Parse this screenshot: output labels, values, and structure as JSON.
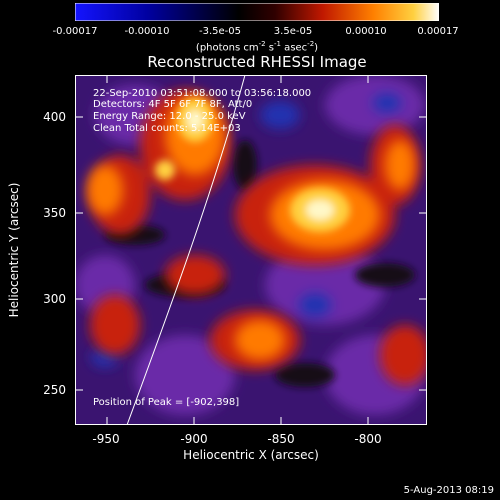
{
  "colorbar": {
    "ticks": [
      "-0.00017",
      "-0.00010",
      "-3.5e-05",
      "3.5e-05",
      "0.00010",
      "0.00017"
    ],
    "units_main": "(photons cm",
    "units_sup1": "-2",
    "units_mid": " s",
    "units_sup2": "-1",
    "units_mid2": " asec",
    "units_sup3": "-2",
    "units_end": ")",
    "colors": [
      "#1010ff",
      "#0000c0",
      "#000000",
      "#c02000",
      "#ff8000",
      "#ffffc0"
    ]
  },
  "title": "Reconstructed RHESSI Image",
  "info": {
    "time": "22-Sep-2010 03:51:08.000 to 03:56:18.000",
    "detectors": "Detectors: 4F 5F 6F 7F 8F, Att/0",
    "energy": "Energy Range: 12.0 - 25.0 keV",
    "method": "Clean     Total counts: 5.14E+03",
    "peak": "Position of Peak = [-902,398]"
  },
  "axes": {
    "xlabel": "Heliocentric X (arcsec)",
    "ylabel": "Heliocentric Y (arcsec)",
    "xticks": [
      "-950",
      "-900",
      "-850",
      "-800"
    ],
    "yticks": [
      "400",
      "350",
      "300",
      "250"
    ]
  },
  "stamp": "5-Aug-2013 08:19",
  "image_colors": {
    "bg": "#3a1470",
    "violet": "#6a2aa8",
    "dark": "#1a0a20",
    "blue": "#2030b0",
    "red": "#d02010",
    "orange": "#ff7a00",
    "yellow": "#ffd040",
    "white": "#fff8c8"
  }
}
